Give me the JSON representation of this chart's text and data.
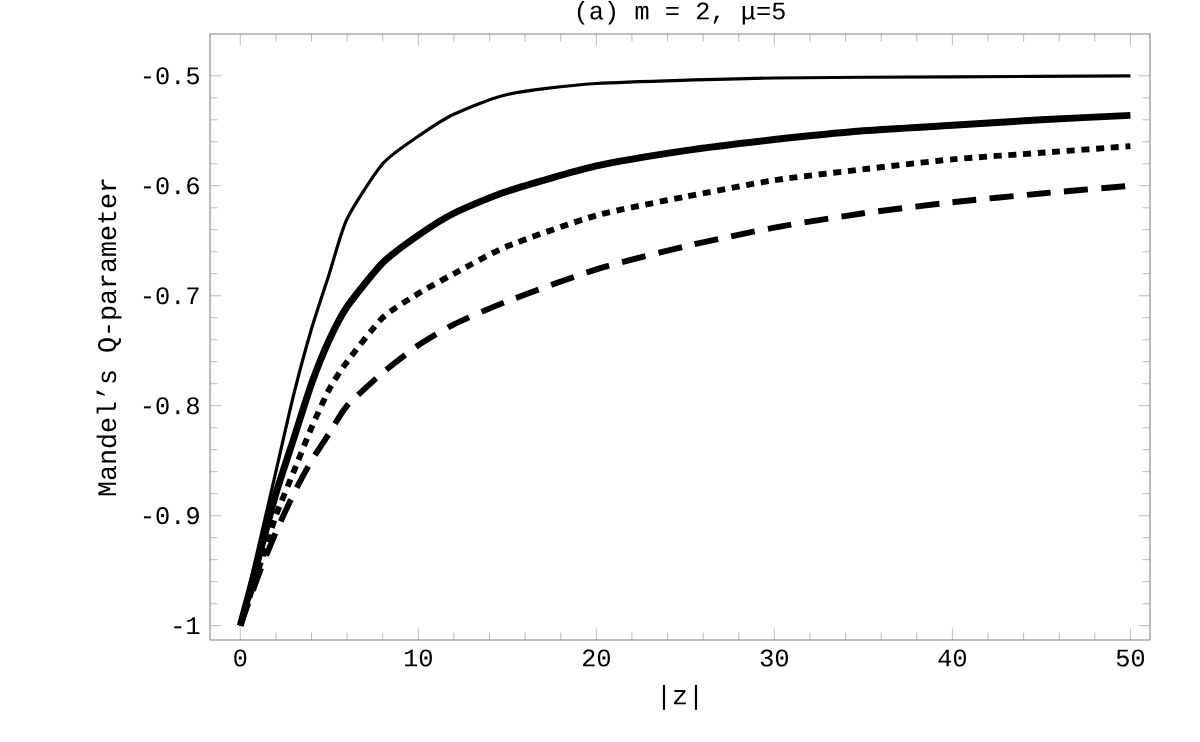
{
  "chart_data": {
    "type": "line",
    "title": "(a) m = 2, μ=5",
    "xlabel": "|z|",
    "ylabel": "Mandel’s Q-parameter",
    "xlim": [
      -1.7,
      51.1
    ],
    "ylim": [
      -1.013,
      -0.462
    ],
    "xticks": [
      0,
      10,
      20,
      30,
      40,
      50
    ],
    "yticks": [
      -1,
      -0.9,
      -0.8,
      -0.7,
      -0.6,
      -0.5
    ],
    "marker": "none",
    "series": [
      {
        "color": "#000000",
        "line_style": "solid",
        "x": [
          0,
          1,
          2,
          3,
          4,
          5,
          6,
          8,
          10,
          12,
          15,
          20,
          30,
          40,
          50
        ],
        "values": [
          -1,
          -0.93,
          -0.86,
          -0.79,
          -0.73,
          -0.68,
          -0.63,
          -0.58,
          -0.555,
          -0.535,
          -0.517,
          -0.507,
          -0.502,
          -0.501,
          -0.5
        ]
      },
      {
        "color": "#000000",
        "line_style": "solid",
        "x": [
          0,
          1,
          2,
          3,
          4,
          5,
          6,
          8,
          10,
          12,
          15,
          20,
          25,
          30,
          35,
          40,
          45,
          50
        ],
        "values": [
          -1,
          -0.94,
          -0.88,
          -0.83,
          -0.78,
          -0.74,
          -0.71,
          -0.67,
          -0.645,
          -0.625,
          -0.605,
          -0.582,
          -0.568,
          -0.558,
          -0.55,
          -0.545,
          -0.54,
          -0.536
        ]
      },
      {
        "color": "#000000",
        "line_style": "dotted",
        "x": [
          0,
          1,
          2,
          3,
          4,
          5,
          6,
          8,
          10,
          12,
          15,
          20,
          25,
          30,
          35,
          40,
          45,
          50
        ],
        "values": [
          -1,
          -0.95,
          -0.9,
          -0.86,
          -0.82,
          -0.785,
          -0.76,
          -0.72,
          -0.698,
          -0.68,
          -0.655,
          -0.627,
          -0.61,
          -0.595,
          -0.585,
          -0.576,
          -0.57,
          -0.564
        ]
      },
      {
        "color": "#000000",
        "line_style": "dashed",
        "x": [
          0,
          1,
          2,
          3,
          4,
          5,
          6,
          8,
          10,
          12,
          15,
          20,
          25,
          30,
          35,
          40,
          45,
          50
        ],
        "values": [
          -1,
          -0.955,
          -0.915,
          -0.88,
          -0.85,
          -0.825,
          -0.8,
          -0.77,
          -0.745,
          -0.726,
          -0.705,
          -0.676,
          -0.655,
          -0.638,
          -0.625,
          -0.615,
          -0.607,
          -0.6
        ]
      }
    ]
  }
}
